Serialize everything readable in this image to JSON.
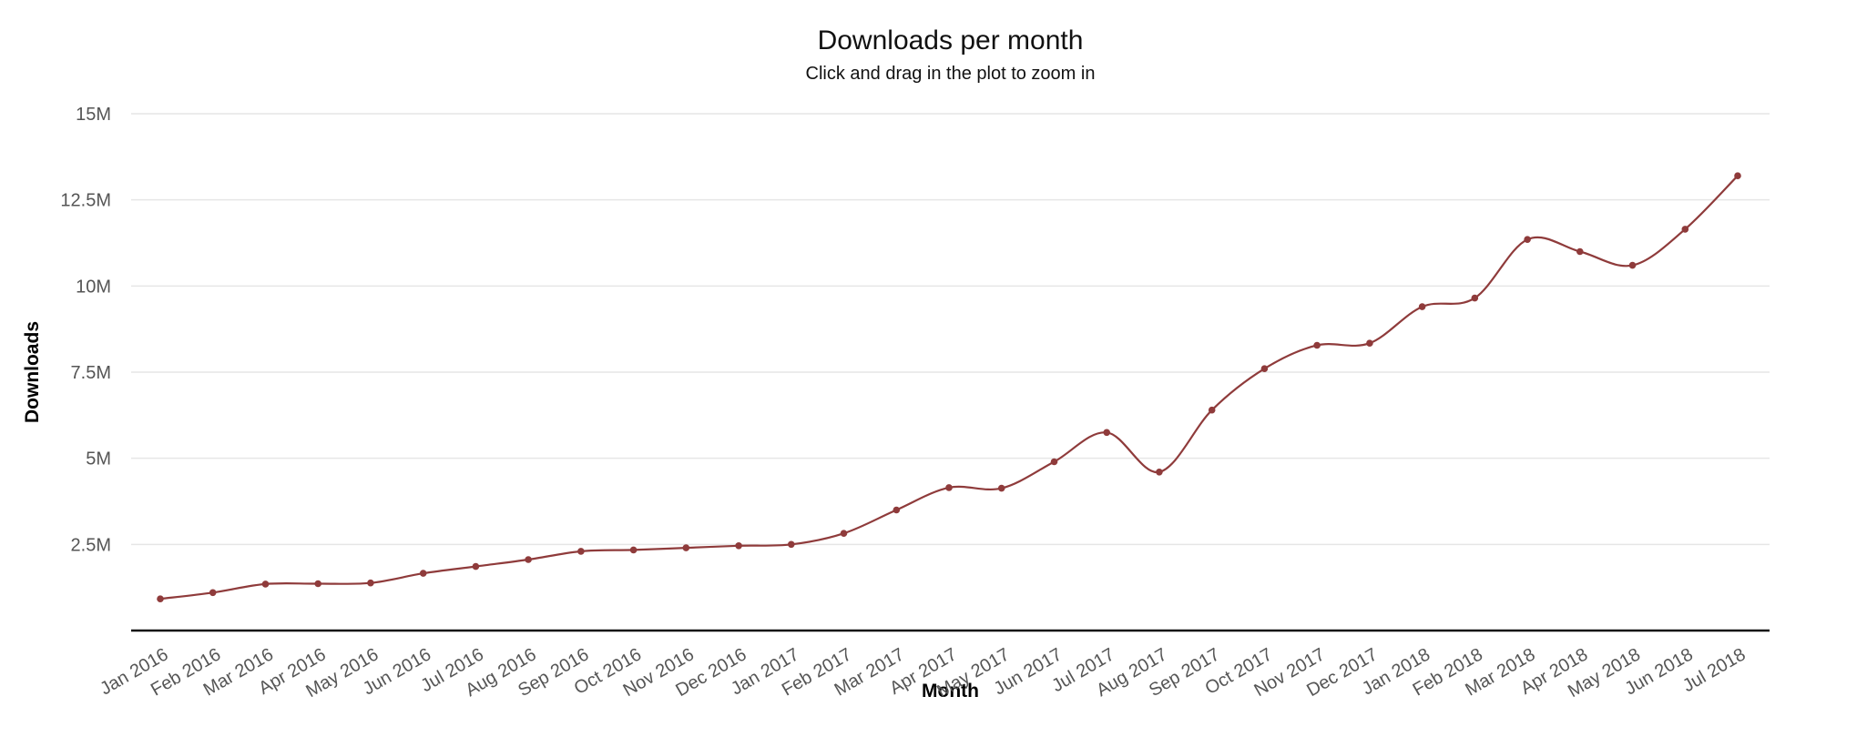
{
  "chart_data": {
    "type": "line",
    "title": "Downloads per month",
    "subtitle": "Click and drag in the plot to zoom in",
    "xlabel": "Month",
    "ylabel": "Downloads",
    "x": [
      "Jan 2016",
      "Feb 2016",
      "Mar 2016",
      "Apr 2016",
      "May 2016",
      "Jun 2016",
      "Jul 2016",
      "Aug 2016",
      "Sep 2016",
      "Oct 2016",
      "Nov 2016",
      "Dec 2016",
      "Jan 2017",
      "Feb 2017",
      "Mar 2017",
      "Apr 2017",
      "May 2017",
      "Jun 2017",
      "Jul 2017",
      "Aug 2017",
      "Sep 2017",
      "Oct 2017",
      "Nov 2017",
      "Dec 2017",
      "Jan 2018",
      "Feb 2018",
      "Mar 2018",
      "Apr 2018",
      "May 2018",
      "Jun 2018",
      "Jul 2018"
    ],
    "series": [
      {
        "name": "Downloads",
        "color": "#8f3b3b",
        "values_millions": [
          0.92,
          1.1,
          1.35,
          1.36,
          1.38,
          1.66,
          1.86,
          2.06,
          2.3,
          2.34,
          2.4,
          2.46,
          2.5,
          2.82,
          3.5,
          4.15,
          4.13,
          4.9,
          5.75,
          4.6,
          6.4,
          7.6,
          8.28,
          8.34,
          9.4,
          9.65,
          11.35,
          11.0,
          10.6,
          11.65,
          13.2
        ]
      }
    ],
    "ylim_millions": [
      0,
      15
    ],
    "yticks_millions": [
      2.5,
      5,
      7.5,
      10,
      12.5,
      15
    ],
    "ytick_labels": [
      "2.5M",
      "5M",
      "7.5M",
      "10M",
      "12.5M",
      "15M"
    ],
    "grid": true,
    "gridline_color": "#e6e6e6",
    "axis_line_color": "#111111",
    "tick_label_color": "#555555",
    "legend": "none",
    "line_shape": "spline",
    "markers": true,
    "x_tick_rotation_deg": -30
  }
}
